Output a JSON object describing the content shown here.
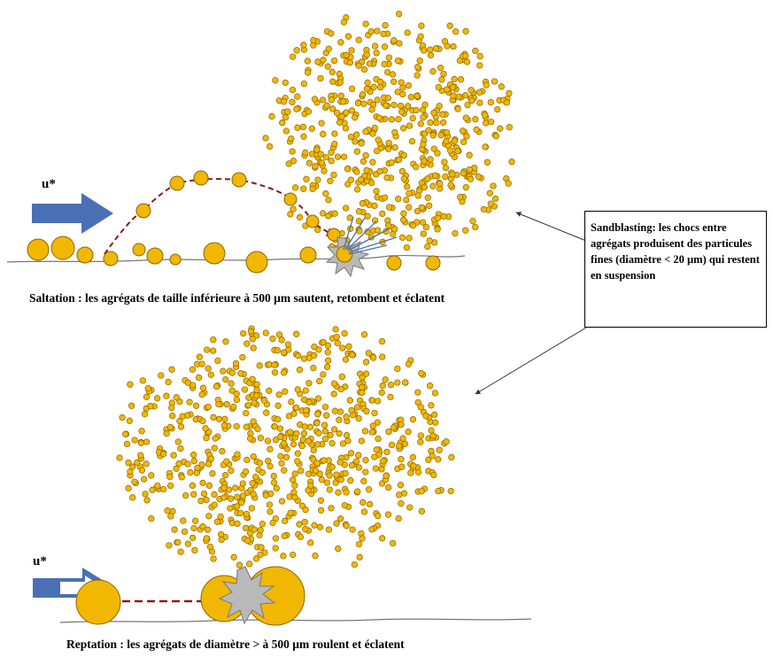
{
  "labels": {
    "wind_top": "u*",
    "wind_bottom": "u*"
  },
  "captions": {
    "saltation": "Saltation : les agrégats de taille inférieure à 500 µm sautent, retombent et éclatent",
    "reptation": "Reptation : les agrégats de diamètre > à 500 µm roulent et éclatent",
    "sandblasting": "Sandblasting: les chocs entre agrégats produisent des particules fines (diamètre < 20 µm) qui restent en suspension"
  },
  "colors": {
    "grain": "#f2b700",
    "grain_outline": "#8a6500",
    "arrow": "#4a6fb5",
    "trajectory": "#8b1a1a",
    "burst": "#b9b9b9"
  }
}
